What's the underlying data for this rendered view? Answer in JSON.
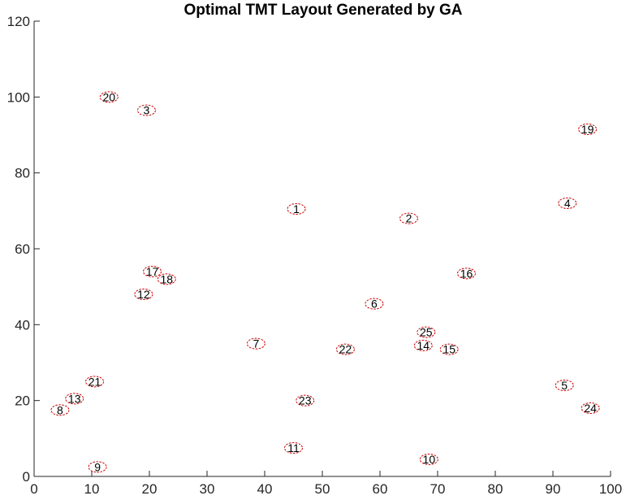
{
  "chart_data": {
    "type": "scatter",
    "title": "Optimal TMT Layout Generated by GA",
    "xlabel": "",
    "ylabel": "",
    "xlim": [
      0,
      100
    ],
    "ylim": [
      0,
      120
    ],
    "x_ticks": [
      0,
      10,
      20,
      30,
      40,
      50,
      60,
      70,
      80,
      90,
      100
    ],
    "y_ticks": [
      0,
      20,
      40,
      60,
      80,
      100,
      120
    ],
    "grid": false,
    "marker_color": "#cc0000",
    "label_color": "#000000",
    "points": [
      {
        "label": "1",
        "x": 45.5,
        "y": 70.5
      },
      {
        "label": "2",
        "x": 65.0,
        "y": 68.0
      },
      {
        "label": "3",
        "x": 19.5,
        "y": 96.5
      },
      {
        "label": "4",
        "x": 92.5,
        "y": 72.0
      },
      {
        "label": "5",
        "x": 92.0,
        "y": 24.0
      },
      {
        "label": "6",
        "x": 59.0,
        "y": 45.5
      },
      {
        "label": "7",
        "x": 38.5,
        "y": 35.0
      },
      {
        "label": "8",
        "x": 4.5,
        "y": 17.5
      },
      {
        "label": "9",
        "x": 11.0,
        "y": 2.5
      },
      {
        "label": "10",
        "x": 68.5,
        "y": 4.5
      },
      {
        "label": "11",
        "x": 45.0,
        "y": 7.5
      },
      {
        "label": "12",
        "x": 19.0,
        "y": 48.0
      },
      {
        "label": "13",
        "x": 7.0,
        "y": 20.5
      },
      {
        "label": "14",
        "x": 67.5,
        "y": 34.5
      },
      {
        "label": "15",
        "x": 72.0,
        "y": 33.5
      },
      {
        "label": "16",
        "x": 75.0,
        "y": 53.5
      },
      {
        "label": "17",
        "x": 20.5,
        "y": 54.0
      },
      {
        "label": "18",
        "x": 23.0,
        "y": 52.0
      },
      {
        "label": "19",
        "x": 96.0,
        "y": 91.5
      },
      {
        "label": "20",
        "x": 13.0,
        "y": 100.0
      },
      {
        "label": "21",
        "x": 10.5,
        "y": 25.0
      },
      {
        "label": "22",
        "x": 54.0,
        "y": 33.5
      },
      {
        "label": "23",
        "x": 47.0,
        "y": 20.0
      },
      {
        "label": "24",
        "x": 96.5,
        "y": 18.0
      },
      {
        "label": "25",
        "x": 68.0,
        "y": 38.0
      }
    ]
  }
}
